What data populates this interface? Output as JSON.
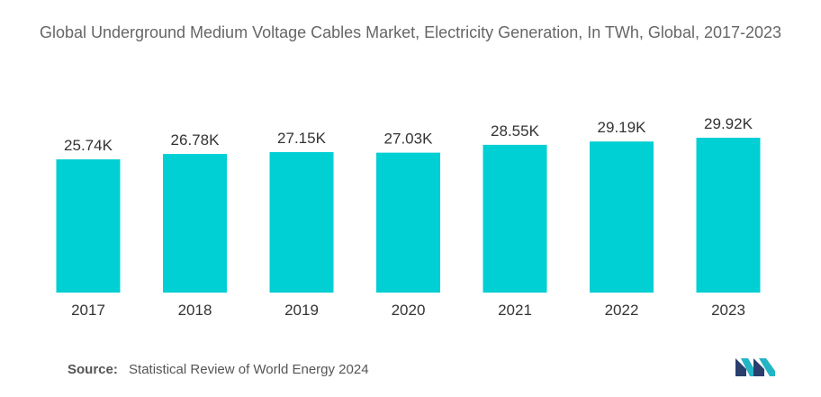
{
  "chart_data": {
    "type": "bar",
    "title": "Global Underground Medium Voltage Cables Market, Electricity Generation, In TWh, Global, 2017-2023",
    "categories": [
      "2017",
      "2018",
      "2019",
      "2020",
      "2021",
      "2022",
      "2023"
    ],
    "values": [
      25740,
      26780,
      27150,
      27030,
      28550,
      29190,
      29920
    ],
    "value_labels": [
      "25.74K",
      "26.78K",
      "27.15K",
      "27.03K",
      "28.55K",
      "29.19K",
      "29.92K"
    ],
    "xlabel": "",
    "ylabel": "",
    "grid": false,
    "legend": "none",
    "bar_color": "#00cfd3"
  },
  "source": {
    "label": "Source:",
    "text": "Statistical Review of World Energy 2024"
  },
  "logo": {
    "icon": "mordor-intelligence-logo-icon",
    "colors": [
      "#2a3f6d",
      "#22b5c5"
    ]
  }
}
